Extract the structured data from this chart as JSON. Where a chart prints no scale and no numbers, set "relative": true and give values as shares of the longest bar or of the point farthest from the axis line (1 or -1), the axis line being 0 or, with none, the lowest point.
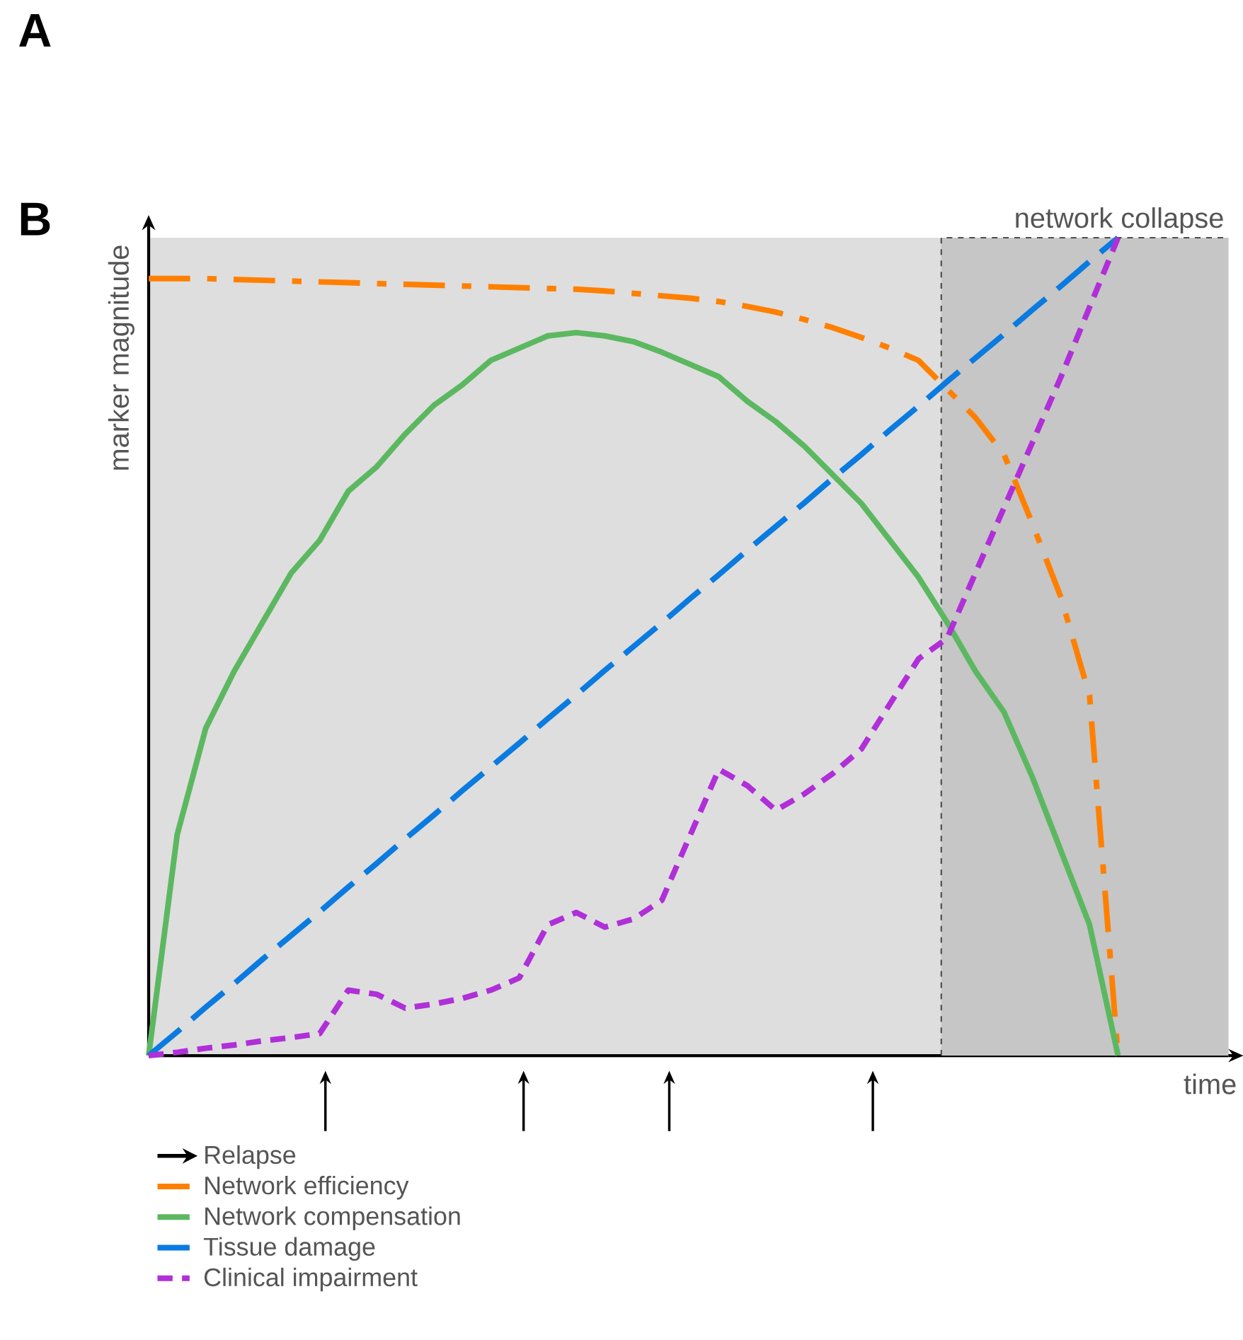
{
  "chart_data": {
    "type": "line",
    "relative": true,
    "xlabel": "time",
    "ylabel": "marker magnitude",
    "annotations": [
      "A",
      "B",
      "Relapse",
      "network collapse"
    ],
    "legend": "bottom",
    "categories": [
      null,
      null,
      null,
      null,
      null,
      null,
      null,
      null,
      null,
      null,
      null,
      null,
      null,
      null,
      null,
      null,
      null,
      null,
      null,
      null,
      null,
      null,
      null,
      null,
      null,
      null,
      null,
      null,
      null,
      null,
      null,
      null,
      null,
      null,
      null
    ],
    "series": [
      {
        "name": "Network efficiency",
        "color": "#ff8000",
        "line_style": "dashdot",
        "values": [
          0.95,
          0.95,
          0.95,
          0.949,
          0.948,
          0.947,
          0.946,
          0.945,
          0.944,
          0.943,
          0.942,
          0.941,
          0.94,
          0.939,
          0.938,
          0.937,
          0.935,
          0.932,
          0.929,
          0.926,
          0.922,
          0.916,
          0.909,
          0.9,
          0.89,
          0.878,
          0.865,
          0.85,
          0.815,
          0.78,
          0.735,
          0.65,
          0.56,
          0.44,
          0
        ]
      },
      {
        "name": "Network compensation",
        "color": "#5cb860",
        "line_style": "solid",
        "values": [
          0,
          0.27,
          0.4,
          0.47,
          0.53,
          0.59,
          0.63,
          0.69,
          0.72,
          0.76,
          0.795,
          0.82,
          0.85,
          0.865,
          0.88,
          0.884,
          0.88,
          0.873,
          0.86,
          0.845,
          0.83,
          0.8,
          0.775,
          0.745,
          0.71,
          0.675,
          0.63,
          0.585,
          0.53,
          0.47,
          0.42,
          0.34,
          0.25,
          0.16,
          0
        ]
      },
      {
        "name": "Tissue damage",
        "color": "#0a7be0",
        "line_style": "dashed",
        "values": [
          0,
          0.029,
          0.059,
          0.088,
          0.118,
          0.147,
          0.176,
          0.206,
          0.235,
          0.265,
          0.294,
          0.324,
          0.353,
          0.382,
          0.412,
          0.441,
          0.471,
          0.5,
          0.529,
          0.559,
          0.588,
          0.618,
          0.647,
          0.676,
          0.706,
          0.735,
          0.765,
          0.794,
          0.824,
          0.853,
          0.882,
          0.912,
          0.941,
          0.971,
          1
        ]
      },
      {
        "name": "Clinical impairment",
        "color": "#b02fd8",
        "line_style": "dotted",
        "values": [
          0,
          0.004,
          0.009,
          0.013,
          0.018,
          0.022,
          0.027,
          0.08,
          0.075,
          0.058,
          0.063,
          0.07,
          0.08,
          0.095,
          0.16,
          0.175,
          0.157,
          0.167,
          0.19,
          0.27,
          0.35,
          0.33,
          0.3,
          0.32,
          0.345,
          0.375,
          0.43,
          0.485,
          0.51,
          0.59,
          0.67,
          0.75,
          0.83,
          0.915,
          1
        ]
      }
    ]
  }
}
